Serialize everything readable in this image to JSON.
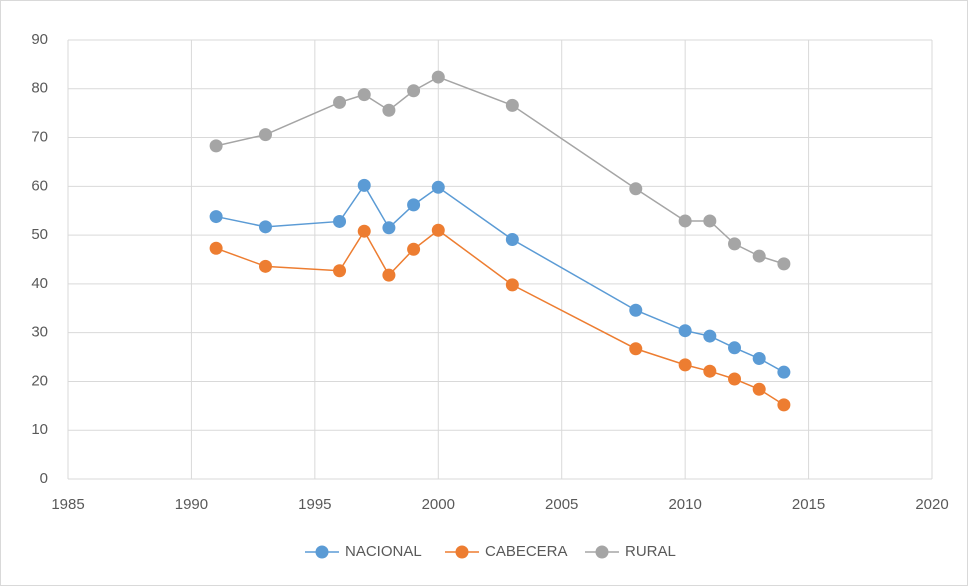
{
  "chart_data": {
    "type": "line",
    "x": [
      1991,
      1993,
      1996,
      1997,
      1998,
      1999,
      2000,
      2003,
      2008,
      2010,
      2011,
      2012,
      2013,
      2014
    ],
    "series": [
      {
        "name": "NACIONAL",
        "color": "#5b9bd5",
        "values": [
          53.8,
          51.7,
          52.8,
          60.2,
          51.5,
          56.2,
          59.8,
          49.1,
          34.6,
          30.4,
          29.3,
          26.9,
          24.7,
          21.9
        ]
      },
      {
        "name": "CABECERA",
        "color": "#ed7d31",
        "values": [
          47.3,
          43.6,
          42.7,
          50.8,
          41.8,
          47.1,
          51.0,
          39.8,
          26.7,
          23.4,
          22.1,
          20.5,
          18.4,
          15.2
        ]
      },
      {
        "name": "RURAL",
        "color": "#a5a5a5",
        "values": [
          68.3,
          70.6,
          77.2,
          78.8,
          75.6,
          79.6,
          82.4,
          76.6,
          59.5,
          52.9,
          52.9,
          48.2,
          45.7,
          44.1
        ]
      }
    ],
    "xlim": [
      1985,
      2020
    ],
    "xticks": [
      1985,
      1990,
      1995,
      2000,
      2005,
      2010,
      2015,
      2020
    ],
    "ylim": [
      0,
      90
    ],
    "yticks": [
      0,
      10,
      20,
      30,
      40,
      50,
      60,
      70,
      80,
      90
    ],
    "grid": true,
    "legend": "bottom"
  }
}
